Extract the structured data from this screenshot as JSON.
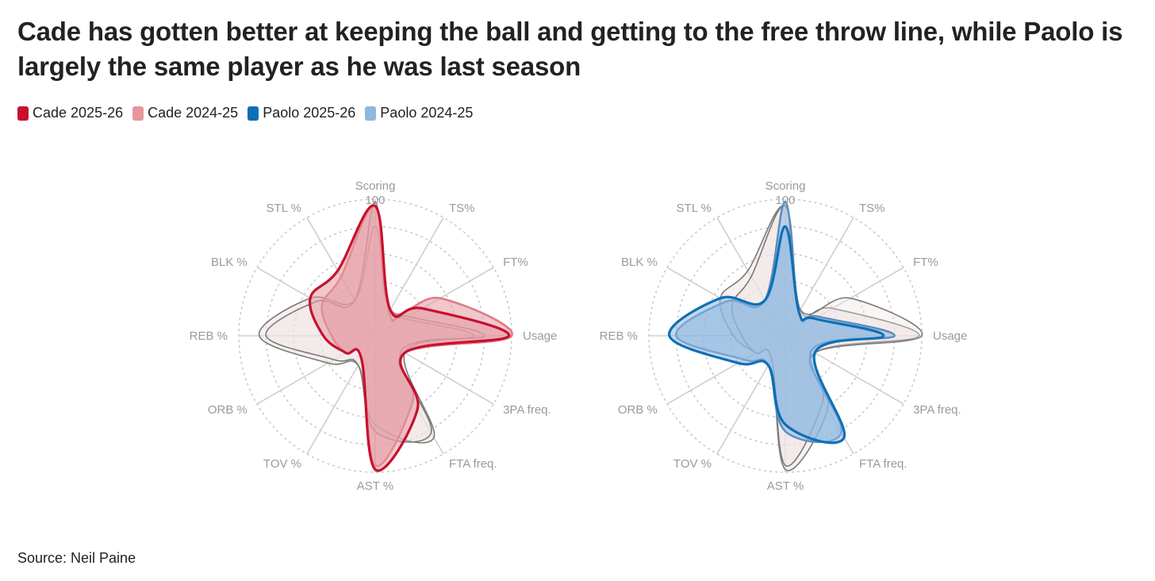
{
  "title": "Cade has gotten better at keeping the ball and getting to the free throw line, while Paolo is largely the same player as he was last season",
  "legend": [
    {
      "label": "Cade 2025-26",
      "color": "#c8102e"
    },
    {
      "label": "Cade 2024-25",
      "color": "#e8959d"
    },
    {
      "label": "Paolo 2025-26",
      "color": "#0c6fb8"
    },
    {
      "label": "Paolo 2024-25",
      "color": "#8fb8de"
    }
  ],
  "source": "Source: Neil Paine",
  "chart_data": [
    {
      "type": "radar",
      "axes": [
        "Scoring",
        "TS%",
        "FT%",
        "Usage",
        "3PA freq.",
        "FTA freq.",
        "AST %",
        "TOV %",
        "ORB %",
        "REB %",
        "BLK %",
        "STL %"
      ],
      "max_label": "100",
      "rmax": 100,
      "grid_levels": [
        20,
        40,
        60,
        80,
        100
      ],
      "series": [
        {
          "name": "Cade 2025-26",
          "color": "#c8102e",
          "fill": "#e39aa2",
          "values": [
            95,
            22,
            40,
            98,
            25,
            62,
            98,
            20,
            25,
            38,
            55,
            55
          ]
        },
        {
          "name": "Cade 2024-25",
          "color": "#e07a85",
          "fill": "#e39aa2",
          "values": [
            95,
            22,
            55,
            100,
            25,
            55,
            95,
            20,
            25,
            32,
            45,
            50
          ]
        },
        {
          "name": "Paolo 2025-26",
          "color": "#0c6fb8",
          "fill": "#8fb8de",
          "values": [
            80,
            20,
            25,
            72,
            25,
            86,
            65,
            25,
            40,
            85,
            55,
            30
          ]
        },
        {
          "name": "Paolo 2024-25",
          "color": "#5b8fc0",
          "fill": "#8fb8de",
          "values": [
            98,
            20,
            28,
            80,
            22,
            82,
            70,
            25,
            35,
            80,
            50,
            30
          ]
        }
      ],
      "charts": [
        {
          "name": "cade",
          "reference": [
            "Paolo 2025-26",
            "Paolo 2024-25"
          ],
          "highlight": [
            "Cade 2025-26",
            "Cade 2024-25"
          ]
        },
        {
          "name": "paolo",
          "reference": [
            "Cade 2025-26",
            "Cade 2024-25"
          ],
          "highlight": [
            "Paolo 2025-26",
            "Paolo 2024-25"
          ]
        }
      ]
    }
  ]
}
